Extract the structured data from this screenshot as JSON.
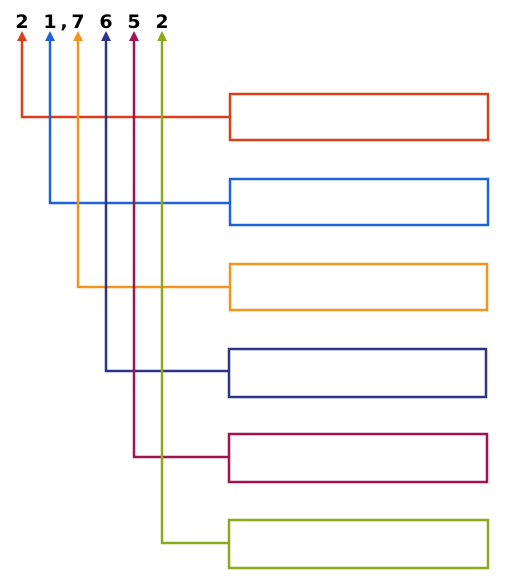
{
  "labels": {
    "digit_1": "2",
    "digit_2": "1",
    "comma": ",",
    "digit_3": "7",
    "digit_4": "6",
    "digit_5": "5",
    "digit_6": "2"
  },
  "colors": {
    "line_1": "#d8401c",
    "line_2": "#1f63d6",
    "line_3": "#f0951e",
    "line_4": "#2e3486",
    "line_5": "#9e1550",
    "line_6": "#8aaa1c"
  },
  "answer_boxes": [
    {
      "color": "#d8401c",
      "value": ""
    },
    {
      "color": "#1f63d6",
      "value": ""
    },
    {
      "color": "#f0951e",
      "value": ""
    },
    {
      "color": "#2e3486",
      "value": ""
    },
    {
      "color": "#9e1550",
      "value": ""
    },
    {
      "color": "#8aaa1c",
      "value": ""
    }
  ]
}
